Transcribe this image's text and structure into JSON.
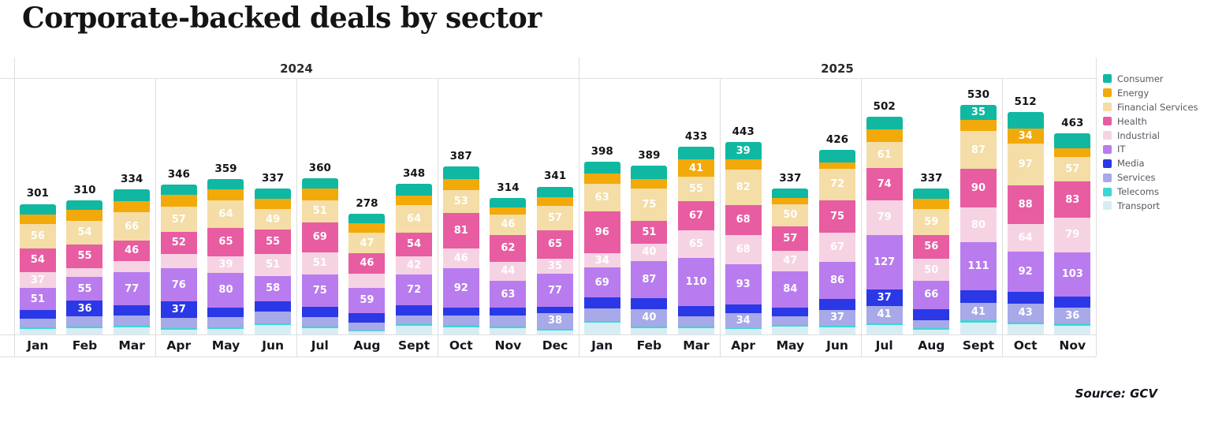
{
  "title": "Corporate-backed deals by sector",
  "source": "Source: GCV",
  "chart_data": {
    "type": "bar",
    "stacked": true,
    "legend_position": "right",
    "year_groups": [
      {
        "label": "2024",
        "months": 12
      },
      {
        "label": "2025",
        "months": 11
      }
    ],
    "categories": [
      "Jan",
      "Feb",
      "Mar",
      "Apr",
      "May",
      "Jun",
      "Jul",
      "Aug",
      "Sept",
      "Oct",
      "Nov",
      "Dec",
      "Jan",
      "Feb",
      "Mar",
      "Apr",
      "May",
      "Jun",
      "Jul",
      "Aug",
      "Sept",
      "Oct",
      "Nov"
    ],
    "totals": [
      301,
      310,
      334,
      346,
      359,
      337,
      360,
      278,
      348,
      387,
      314,
      341,
      398,
      389,
      433,
      443,
      337,
      426,
      502,
      337,
      530,
      512,
      463
    ],
    "series": [
      {
        "name": "Consumer",
        "color": "#10b8a2",
        "values": [
          24,
          22,
          27,
          24,
          24,
          25,
          24,
          22,
          27,
          29,
          22,
          24,
          27,
          31,
          29,
          39,
          22,
          29,
          29,
          24,
          35,
          38,
          33
        ],
        "labeled": [
          0,
          0,
          0,
          0,
          0,
          0,
          0,
          0,
          0,
          0,
          0,
          0,
          0,
          0,
          0,
          1,
          0,
          0,
          0,
          0,
          1,
          0,
          0
        ]
      },
      {
        "name": "Energy",
        "color": "#f2a90a",
        "values": [
          23,
          26,
          25,
          28,
          25,
          22,
          26,
          22,
          22,
          25,
          16,
          20,
          24,
          22,
          41,
          24,
          15,
          15,
          29,
          24,
          26,
          34,
          21
        ],
        "labeled": [
          0,
          0,
          0,
          0,
          0,
          0,
          0,
          0,
          0,
          0,
          0,
          0,
          0,
          0,
          1,
          0,
          0,
          0,
          0,
          0,
          0,
          1,
          0
        ]
      },
      {
        "name": "Financial Services",
        "color": "#f4dda6",
        "values": [
          56,
          54,
          66,
          57,
          64,
          49,
          51,
          47,
          64,
          53,
          46,
          57,
          63,
          75,
          55,
          82,
          50,
          72,
          61,
          59,
          87,
          97,
          57
        ],
        "labeled": [
          1,
          1,
          1,
          1,
          1,
          1,
          1,
          1,
          1,
          1,
          1,
          1,
          1,
          1,
          1,
          1,
          1,
          1,
          1,
          1,
          1,
          1,
          1
        ]
      },
      {
        "name": "Health",
        "color": "#e85ca2",
        "values": [
          54,
          55,
          46,
          52,
          65,
          55,
          69,
          46,
          54,
          81,
          62,
          65,
          96,
          51,
          67,
          68,
          57,
          75,
          74,
          56,
          90,
          88,
          83
        ],
        "labeled": [
          1,
          1,
          1,
          1,
          1,
          1,
          1,
          1,
          1,
          1,
          1,
          1,
          1,
          1,
          1,
          1,
          1,
          1,
          1,
          1,
          1,
          1,
          1
        ]
      },
      {
        "name": "Industrial",
        "color": "#f6d3e3",
        "values": [
          37,
          20,
          26,
          33,
          39,
          51,
          51,
          33,
          42,
          46,
          44,
          35,
          34,
          40,
          65,
          68,
          47,
          67,
          79,
          50,
          80,
          64,
          79
        ],
        "labeled": [
          1,
          0,
          0,
          0,
          1,
          1,
          1,
          0,
          1,
          1,
          1,
          1,
          1,
          1,
          1,
          1,
          1,
          1,
          1,
          1,
          1,
          1,
          1
        ]
      },
      {
        "name": "IT",
        "color": "#b87cee",
        "values": [
          51,
          55,
          77,
          76,
          80,
          58,
          75,
          59,
          72,
          92,
          63,
          77,
          69,
          87,
          110,
          93,
          84,
          86,
          127,
          66,
          111,
          92,
          103
        ],
        "labeled": [
          1,
          1,
          1,
          1,
          1,
          1,
          1,
          1,
          1,
          1,
          1,
          1,
          1,
          1,
          1,
          1,
          1,
          1,
          1,
          1,
          1,
          1,
          1
        ]
      },
      {
        "name": "Media",
        "color": "#2a38e6",
        "values": [
          20,
          36,
          23,
          37,
          22,
          25,
          24,
          22,
          24,
          18,
          18,
          13,
          25,
          24,
          24,
          20,
          20,
          25,
          37,
          25,
          28,
          28,
          26
        ],
        "labeled": [
          0,
          1,
          0,
          1,
          0,
          0,
          0,
          0,
          0,
          0,
          0,
          0,
          0,
          0,
          0,
          0,
          0,
          0,
          1,
          0,
          0,
          0,
          0
        ]
      },
      {
        "name": "Services",
        "color": "#a7a9e9",
        "values": [
          20,
          24,
          24,
          25,
          24,
          27,
          22,
          18,
          19,
          22,
          24,
          38,
          29,
          40,
          24,
          34,
          20,
          37,
          41,
          18,
          41,
          43,
          36
        ],
        "labeled": [
          0,
          0,
          0,
          0,
          0,
          0,
          0,
          0,
          0,
          0,
          0,
          1,
          0,
          1,
          0,
          1,
          0,
          1,
          1,
          0,
          1,
          1,
          1
        ]
      },
      {
        "name": "Telecoms",
        "color": "#3cd7d3",
        "values": [
          3,
          4,
          3,
          3,
          4,
          4,
          3,
          2,
          4,
          4,
          4,
          2,
          4,
          4,
          4,
          2,
          4,
          4,
          4,
          4,
          4,
          5,
          5
        ],
        "labeled": [
          0,
          0,
          0,
          0,
          0,
          0,
          0,
          0,
          0,
          0,
          0,
          0,
          0,
          0,
          0,
          0,
          0,
          0,
          0,
          0,
          0,
          0,
          0
        ]
      },
      {
        "name": "Transport",
        "color": "#d8edf3",
        "values": [
          13,
          14,
          17,
          11,
          12,
          21,
          15,
          7,
          20,
          17,
          15,
          10,
          27,
          15,
          14,
          13,
          18,
          16,
          21,
          11,
          28,
          23,
          20
        ],
        "labeled": [
          0,
          0,
          0,
          0,
          0,
          0,
          0,
          0,
          0,
          0,
          0,
          0,
          0,
          0,
          0,
          0,
          0,
          0,
          0,
          0,
          0,
          0,
          0
        ]
      }
    ]
  }
}
